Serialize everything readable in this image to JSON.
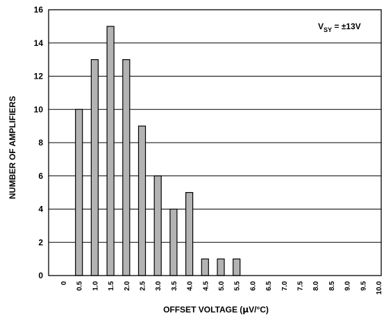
{
  "chart_data": {
    "type": "bar",
    "categories": [
      "0",
      "0.5",
      "1.0",
      "1.5",
      "2.0",
      "2.5",
      "3.0",
      "3.5",
      "4.0",
      "4.5",
      "5.0",
      "5.5",
      "6.0",
      "6.5",
      "7.0",
      "7.5",
      "8.0",
      "8.5",
      "9.0",
      "9.5",
      "10.0"
    ],
    "values": [
      0,
      10,
      13,
      15,
      13,
      9,
      6,
      4,
      5,
      1,
      1,
      1,
      0,
      0,
      0,
      0,
      0,
      0,
      0,
      0,
      0
    ],
    "xlabel_pre": "OFFSET VOLTAGE (",
    "xlabel_mu": "μ",
    "xlabel_post": "V/°C)",
    "ylabel": "NUMBER OF AMPLIFIERS",
    "ylim": [
      0,
      16
    ],
    "yticks": [
      "0",
      "2",
      "4",
      "6",
      "8",
      "10",
      "12",
      "14",
      "16"
    ],
    "grid": true,
    "bar_color": "#b3b3b3",
    "annotation": {
      "prefix": "V",
      "subscript": "SY",
      "suffix": " = ±13V"
    }
  }
}
